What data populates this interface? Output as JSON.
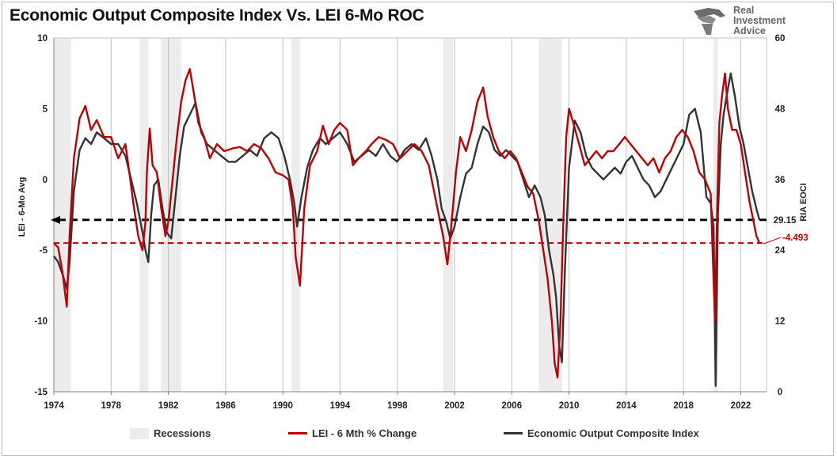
{
  "header": {
    "title": "Economic Output Composite Index Vs. LEI 6-Mo ROC",
    "logo_lines": [
      "Real",
      "Investment",
      "Advice"
    ],
    "logo_icon": "eagle-icon"
  },
  "chart_data": {
    "type": "line",
    "title": "Economic Output Composite Index Vs. LEI 6-Mo ROC",
    "ylabel_left": "LEI - 6-Mo Avg",
    "ylabel_right": "RIA EOCI",
    "ylim_left": [
      -15,
      10
    ],
    "ylim_right": [
      0,
      60
    ],
    "xlim": [
      1974,
      2023.8
    ],
    "x_ticks": [
      "1974",
      "1978",
      "1982",
      "1986",
      "1990",
      "1994",
      "1998",
      "2002",
      "2006",
      "2010",
      "2014",
      "2018",
      "2022"
    ],
    "y_ticks_left": [
      "10",
      "5",
      "0",
      "-5",
      "-10",
      "-15"
    ],
    "y_ticks_right": [
      "60",
      "48",
      "36",
      "24",
      "12",
      "0"
    ],
    "grid": "vertical",
    "legend_placement": "bottom",
    "recessions": [
      [
        1974.0,
        1975.2
      ],
      [
        1980.0,
        1980.6
      ],
      [
        1981.5,
        1982.9
      ],
      [
        1990.6,
        1991.2
      ],
      [
        2001.2,
        2001.9
      ],
      [
        2007.9,
        2009.5
      ],
      [
        2020.1,
        2020.4
      ]
    ],
    "reference_lines": [
      {
        "axis": "right",
        "value": 29.15,
        "label": "29.15",
        "color": "#000000",
        "style": "dashed"
      },
      {
        "axis": "left",
        "value": -4.493,
        "label": "-4.493",
        "color": "#c00000",
        "style": "dashed"
      }
    ],
    "series": [
      {
        "name": "LEI - 6 Mth % Change",
        "axis": "left",
        "color": "#c00000",
        "x": [
          1974.0,
          1974.3,
          1974.6,
          1974.9,
          1975.1,
          1975.4,
          1975.8,
          1976.2,
          1976.6,
          1977.0,
          1977.5,
          1978.0,
          1978.5,
          1979.0,
          1979.3,
          1979.6,
          1979.9,
          1980.2,
          1980.4,
          1980.5,
          1980.7,
          1980.9,
          1981.2,
          1981.5,
          1981.8,
          1982.0,
          1982.3,
          1982.6,
          1982.9,
          1983.2,
          1983.5,
          1983.8,
          1984.1,
          1984.5,
          1984.9,
          1985.4,
          1985.9,
          1986.5,
          1987.0,
          1987.5,
          1988.0,
          1988.5,
          1989.0,
          1989.5,
          1990.0,
          1990.4,
          1990.7,
          1990.9,
          1991.2,
          1991.5,
          1991.9,
          1992.4,
          1992.8,
          1993.2,
          1993.6,
          1994.0,
          1994.5,
          1994.9,
          1995.3,
          1995.8,
          1996.2,
          1996.7,
          1997.2,
          1997.7,
          1998.2,
          1998.7,
          1999.2,
          1999.7,
          2000.2,
          2000.6,
          2000.9,
          2001.2,
          2001.5,
          2001.8,
          2002.1,
          2002.4,
          2002.8,
          2003.2,
          2003.6,
          2004.0,
          2004.3,
          2004.7,
          2005.1,
          2005.5,
          2005.9,
          2006.3,
          2006.7,
          2007.1,
          2007.5,
          2007.9,
          2008.2,
          2008.5,
          2008.8,
          2009.0,
          2009.2,
          2009.4,
          2009.6,
          2009.8,
          2010.0,
          2010.3,
          2010.7,
          2011.1,
          2011.5,
          2011.9,
          2012.3,
          2012.7,
          2013.1,
          2013.5,
          2013.9,
          2014.3,
          2014.7,
          2015.1,
          2015.5,
          2015.9,
          2016.3,
          2016.7,
          2017.1,
          2017.5,
          2017.9,
          2018.3,
          2018.7,
          2019.1,
          2019.5,
          2019.9,
          2020.2,
          2020.35,
          2020.5,
          2020.7,
          2020.9,
          2021.1,
          2021.4,
          2021.7,
          2022.0,
          2022.3,
          2022.6,
          2022.9,
          2023.1,
          2023.3
        ],
        "values": [
          -4.5,
          -4.8,
          -6.5,
          -9.0,
          -4.0,
          1.5,
          4.3,
          5.2,
          3.5,
          4.2,
          3.0,
          3.0,
          1.5,
          2.5,
          0.3,
          -2.0,
          -4.0,
          -5.0,
          -3.0,
          0.5,
          3.6,
          1.0,
          0.5,
          -2.0,
          -4.0,
          -3.0,
          0.0,
          3.0,
          5.5,
          7.0,
          7.8,
          6.0,
          4.0,
          3.0,
          1.5,
          2.5,
          2.0,
          2.2,
          2.3,
          2.0,
          2.5,
          2.2,
          1.5,
          0.5,
          0.3,
          0.0,
          -2.0,
          -5.5,
          -7.5,
          -2.0,
          1.0,
          2.0,
          3.8,
          2.5,
          3.5,
          4.0,
          3.5,
          1.0,
          1.5,
          2.0,
          2.5,
          3.0,
          2.8,
          2.5,
          1.5,
          2.0,
          2.5,
          2.0,
          1.0,
          -1.0,
          -2.5,
          -4.0,
          -6.0,
          -3.0,
          0.5,
          3.0,
          2.0,
          3.5,
          5.5,
          6.5,
          4.5,
          3.0,
          2.0,
          1.5,
          2.0,
          1.5,
          0.5,
          -0.5,
          -1.0,
          -3.0,
          -5.0,
          -7.0,
          -10.0,
          -13.0,
          -14.0,
          -10.0,
          -3.0,
          3.0,
          5.0,
          4.0,
          2.5,
          1.0,
          1.5,
          2.0,
          1.5,
          2.0,
          2.0,
          2.5,
          3.0,
          2.5,
          2.0,
          1.5,
          1.0,
          1.5,
          0.5,
          1.5,
          2.0,
          3.0,
          3.5,
          3.0,
          2.0,
          0.5,
          0.0,
          -1.0,
          -10.0,
          -2.0,
          4.0,
          6.0,
          7.5,
          5.0,
          3.5,
          3.5,
          2.5,
          0.5,
          -1.5,
          -3.0,
          -4.0,
          -4.493
        ]
      },
      {
        "name": "Economic Output Composite Index",
        "axis": "right",
        "color": "#333333",
        "x": [
          1974.0,
          1974.3,
          1974.6,
          1974.9,
          1975.1,
          1975.4,
          1975.8,
          1976.2,
          1976.6,
          1977.0,
          1977.5,
          1978.0,
          1978.5,
          1979.0,
          1979.4,
          1979.8,
          1980.2,
          1980.4,
          1980.6,
          1980.8,
          1981.0,
          1981.3,
          1981.6,
          1981.9,
          1982.2,
          1982.5,
          1982.8,
          1983.1,
          1983.5,
          1983.9,
          1984.3,
          1984.7,
          1985.2,
          1985.7,
          1986.2,
          1986.7,
          1987.2,
          1987.7,
          1988.2,
          1988.7,
          1989.2,
          1989.7,
          1990.1,
          1990.5,
          1990.8,
          1991.0,
          1991.3,
          1991.7,
          1992.1,
          1992.6,
          1993.0,
          1993.5,
          1994.0,
          1994.5,
          1995.0,
          1995.5,
          1996.0,
          1996.5,
          1997.0,
          1997.5,
          1998.0,
          1998.5,
          1999.0,
          1999.5,
          2000.0,
          2000.4,
          2000.8,
          2001.1,
          2001.4,
          2001.7,
          2002.0,
          2002.4,
          2002.8,
          2003.2,
          2003.6,
          2004.0,
          2004.4,
          2004.8,
          2005.2,
          2005.6,
          2006.0,
          2006.4,
          2006.8,
          2007.2,
          2007.6,
          2008.0,
          2008.3,
          2008.6,
          2008.9,
          2009.1,
          2009.3,
          2009.5,
          2009.7,
          2010.0,
          2010.4,
          2010.8,
          2011.2,
          2011.6,
          2012.0,
          2012.4,
          2012.8,
          2013.2,
          2013.6,
          2014.0,
          2014.4,
          2014.8,
          2015.2,
          2015.6,
          2016.0,
          2016.4,
          2016.8,
          2017.2,
          2017.6,
          2018.0,
          2018.4,
          2018.8,
          2019.2,
          2019.6,
          2019.9,
          2020.1,
          2020.25,
          2020.4,
          2020.6,
          2020.8,
          2021.0,
          2021.3,
          2021.6,
          2021.9,
          2022.2,
          2022.5,
          2022.8,
          2023.1,
          2023.3
        ],
        "values": [
          23.0,
          22.0,
          20.0,
          17.5,
          22.0,
          34.0,
          41.0,
          43.0,
          42.0,
          44.0,
          43.0,
          42.0,
          42.0,
          40.0,
          36.0,
          32.0,
          27.0,
          24.0,
          22.0,
          30.0,
          35.0,
          36.0,
          31.0,
          27.0,
          26.0,
          33.0,
          40.0,
          45.0,
          47.0,
          49.0,
          44.0,
          42.0,
          41.0,
          40.0,
          39.0,
          39.0,
          40.0,
          41.0,
          40.0,
          43.0,
          44.0,
          43.0,
          40.0,
          36.0,
          32.0,
          28.0,
          33.0,
          38.0,
          41.0,
          43.0,
          42.0,
          43.0,
          44.0,
          42.0,
          39.0,
          40.0,
          41.0,
          40.0,
          42.0,
          40.0,
          39.0,
          41.0,
          42.0,
          41.0,
          43.0,
          40.0,
          36.0,
          31.0,
          29.0,
          26.0,
          28.0,
          33.0,
          37.0,
          38.0,
          42.0,
          45.0,
          44.0,
          41.0,
          40.0,
          41.0,
          40.0,
          39.0,
          36.0,
          33.0,
          35.0,
          33.0,
          30.0,
          24.0,
          20.0,
          16.0,
          8.0,
          5.0,
          20.0,
          38.0,
          46.0,
          44.0,
          40.0,
          38.0,
          37.0,
          36.0,
          37.0,
          38.0,
          37.0,
          39.0,
          40.0,
          38.0,
          36.0,
          35.0,
          33.0,
          34.0,
          36.0,
          38.0,
          40.0,
          42.0,
          47.0,
          48.0,
          44.0,
          33.0,
          32.0,
          28.0,
          1.0,
          30.0,
          42.0,
          47.0,
          50.0,
          54.0,
          50.0,
          45.0,
          42.0,
          38.0,
          34.0,
          31.0,
          29.15
        ]
      }
    ]
  },
  "legend": [
    {
      "label": "Recessions",
      "kind": "box",
      "color": "#ececec"
    },
    {
      "label": "LEI - 6 Mth % Change",
      "kind": "line",
      "color": "#c00000"
    },
    {
      "label": "Economic Output Composite Index",
      "kind": "line",
      "color": "#333333"
    }
  ]
}
